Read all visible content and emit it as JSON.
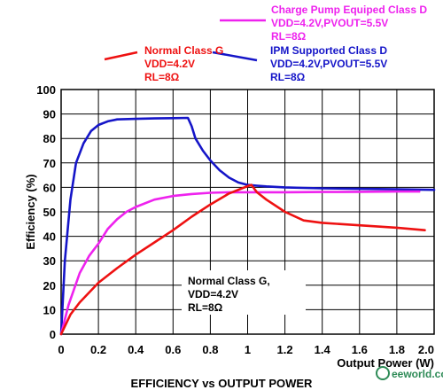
{
  "chart_data": {
    "type": "line",
    "title": "EFFICIENCY vs OUTPUT POWER",
    "xlabel": "Output Power (W)",
    "ylabel": "Efficiency (%)",
    "xlim": [
      0,
      2.0
    ],
    "ylim": [
      0,
      100
    ],
    "x_ticks": [
      "0",
      "0.2",
      "0.4",
      "0.6",
      "0.8",
      "1",
      "1.2",
      "1.4",
      "1.6",
      "1.8",
      "2.0"
    ],
    "y_ticks": [
      "0",
      "10",
      "20",
      "30",
      "40",
      "50",
      "60",
      "70",
      "80",
      "90",
      "100"
    ],
    "grid": true,
    "series": [
      {
        "name": "IPM Supported Class D",
        "color": "#1515c8",
        "x": [
          0,
          0.02,
          0.05,
          0.08,
          0.12,
          0.16,
          0.2,
          0.25,
          0.3,
          0.4,
          0.5,
          0.6,
          0.68,
          0.7,
          0.72,
          0.76,
          0.8,
          0.85,
          0.9,
          0.95,
          1.0,
          1.05,
          1.1,
          1.2,
          1.3,
          1.4,
          1.6,
          1.8,
          2.0
        ],
        "y": [
          0,
          30,
          55,
          70,
          78,
          83,
          85.5,
          87,
          87.8,
          88,
          88.2,
          88.3,
          88.4,
          85,
          80,
          75,
          71,
          67,
          64,
          62,
          61,
          60.7,
          60.4,
          60,
          59.8,
          59.6,
          59.4,
          59.2,
          59
        ]
      },
      {
        "name": "Charge Pump Equiped Class D",
        "color": "#ee22ee",
        "x": [
          0,
          0.04,
          0.1,
          0.15,
          0.2,
          0.25,
          0.3,
          0.35,
          0.4,
          0.5,
          0.6,
          0.7,
          0.8,
          0.9,
          1.0,
          1.2,
          1.4,
          1.6,
          1.8,
          1.92
        ],
        "y": [
          0,
          12,
          25,
          32,
          37,
          43,
          47,
          50,
          52,
          55,
          56.5,
          57.3,
          57.8,
          58,
          58,
          58,
          58.1,
          58.2,
          58.3,
          58.3
        ]
      },
      {
        "name": "Normal Class G",
        "color": "#ee1111",
        "x": [
          0,
          0.05,
          0.1,
          0.2,
          0.3,
          0.4,
          0.5,
          0.6,
          0.7,
          0.8,
          0.9,
          1.0,
          1.02,
          1.05,
          1.1,
          1.2,
          1.3,
          1.4,
          1.6,
          1.8,
          1.95
        ],
        "y": [
          0,
          8,
          13,
          21,
          27,
          32.5,
          37.5,
          42.5,
          48,
          53,
          57.5,
          60.5,
          61,
          58,
          55,
          50,
          46.5,
          45.5,
          44.5,
          43.5,
          42.5
        ]
      }
    ],
    "annotations": {
      "charge_pump": [
        "Charge Pump Equiped Class D",
        "VDD=4.2V,PVOUT=5.5V",
        "RL=8Ω"
      ],
      "normal_class_g_top": [
        "Normal Class G",
        "VDD=4.2V",
        "RL=8Ω"
      ],
      "ipm": [
        "IPM Supported Class D",
        "VDD=4.2V,PVOUT=5.5V",
        "RL=8Ω"
      ],
      "normal_class_g_box": [
        "Normal Class G,",
        "VDD=4.2V",
        "RL=8Ω"
      ]
    },
    "watermark": "eeworld.com.cn"
  }
}
